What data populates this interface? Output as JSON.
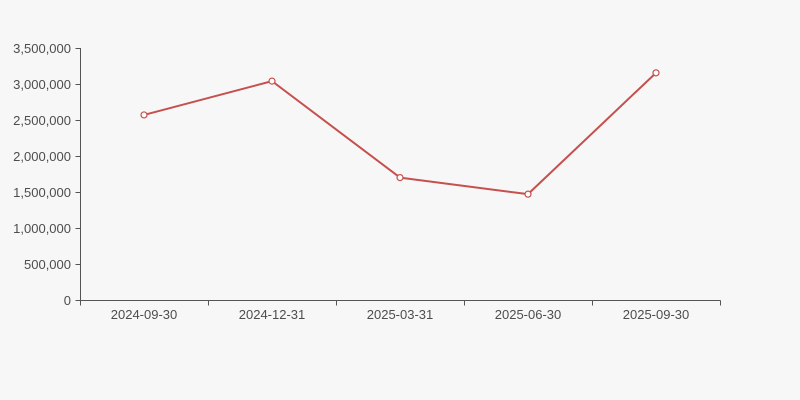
{
  "page": {
    "background": "#f7f7f7"
  },
  "chart_data": {
    "type": "line",
    "title": "",
    "xlabel": "",
    "ylabel": "",
    "x": [
      "2024-09-30",
      "2024-12-31",
      "2025-03-31",
      "2025-06-30",
      "2025-09-30"
    ],
    "values": [
      2570000,
      3040000,
      1700000,
      1470000,
      3155000
    ],
    "ylim": [
      0,
      3500000
    ],
    "ytick_interval": 500000,
    "ytick_labels": [
      "0",
      "500,000",
      "1,000,000",
      "1,500,000",
      "2,000,000",
      "2,500,000",
      "3,000,000",
      "3,500,000"
    ],
    "grid": false,
    "legend": "none",
    "colors": {
      "line": "#c5504d",
      "marker_fill": "#ffffff",
      "marker_stroke": "#c5504d",
      "axis": "#555555",
      "text": "#4d4d4d",
      "background": "#f7f7f7"
    },
    "style": {
      "line_width": 2,
      "marker_radius": 3,
      "font_size": 13
    }
  }
}
